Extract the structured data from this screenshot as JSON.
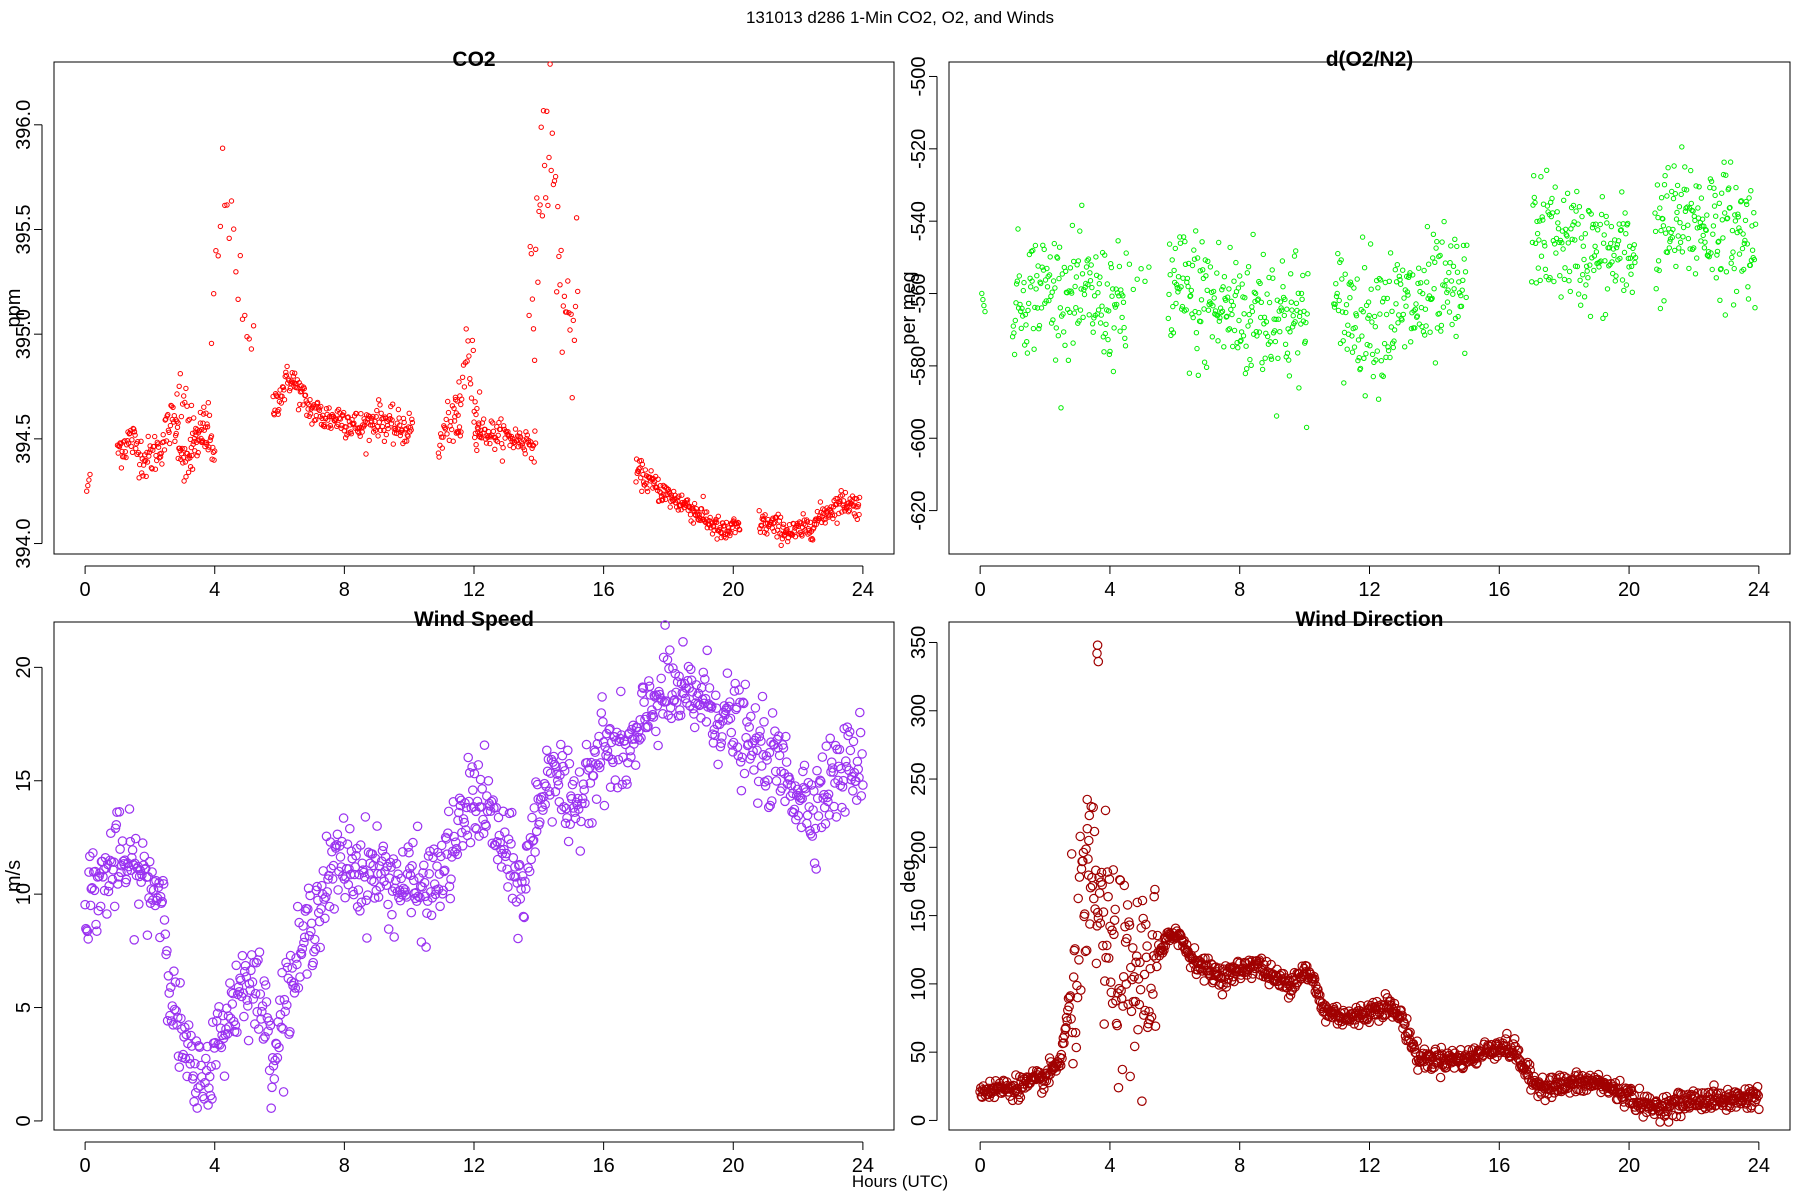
{
  "title": "131013   d286   1-Min CO2, O2, and Winds",
  "xlabel": "Hours (UTC)",
  "chart_data": [
    {
      "type": "scatter",
      "title": "CO2",
      "ylabel": "ppm",
      "color": "#ff0000",
      "xlim": [
        -0.96,
        24.96
      ],
      "ylim": [
        393.95,
        396.3
      ],
      "xticks": [
        "0",
        "4",
        "8",
        "12",
        "16",
        "20",
        "24"
      ],
      "yticks": [
        "394.0",
        "394.5",
        "395.0",
        "395.5",
        "396.0"
      ],
      "segments": [
        {
          "x0": 0.05,
          "x1": 0.15,
          "n": 4,
          "y": [
            394.25,
            394.33
          ]
        },
        {
          "x0": 1.0,
          "x1": 4.0,
          "n": 150,
          "y": [
            394.45,
            394.5,
            394.4,
            394.45,
            394.6,
            394.35,
            394.55,
            394.45
          ],
          "noise": 0.05
        },
        {
          "x0": 2.8,
          "x1": 3.8,
          "n": 30,
          "y": [
            394.6,
            394.7,
            394.4,
            394.6
          ],
          "noise": 0.08
        },
        {
          "x0": 3.9,
          "x1": 5.2,
          "n": 20,
          "y": [
            395.0,
            395.7,
            395.6,
            395.0,
            394.9
          ],
          "noise": 0.1
        },
        {
          "x0": 5.8,
          "x1": 10.1,
          "n": 220,
          "y": [
            394.65,
            394.8,
            394.65,
            394.6,
            394.6,
            394.55,
            394.6,
            394.55,
            394.55
          ],
          "noise": 0.04
        },
        {
          "x0": 10.9,
          "x1": 11.6,
          "n": 30,
          "y": [
            394.45,
            394.6,
            394.5
          ],
          "noise": 0.05
        },
        {
          "x0": 11.4,
          "x1": 12.2,
          "n": 30,
          "y": [
            394.6,
            394.9,
            394.6
          ],
          "noise": 0.09
        },
        {
          "x0": 12.0,
          "x1": 13.9,
          "n": 90,
          "y": [
            394.55,
            394.52,
            394.5,
            394.48
          ],
          "noise": 0.035
        },
        {
          "x0": 13.7,
          "x1": 15.2,
          "n": 45,
          "y": [
            394.9,
            395.6,
            396.0,
            395.4,
            395.0,
            395.1
          ],
          "noise": 0.2
        },
        {
          "x0": 17.0,
          "x1": 20.2,
          "n": 180,
          "y": [
            394.35,
            394.28,
            394.22,
            394.18,
            394.12,
            394.05,
            394.08
          ],
          "noise": 0.03
        },
        {
          "x0": 20.8,
          "x1": 23.9,
          "n": 170,
          "y": [
            394.1,
            394.08,
            394.05,
            394.08,
            394.15,
            394.2,
            394.18
          ],
          "noise": 0.03
        }
      ]
    },
    {
      "type": "scatter",
      "title": "d(O2/N2)",
      "ylabel": "per meg",
      "color": "#00ee00",
      "xlim": [
        -0.96,
        24.96
      ],
      "ylim": [
        -632,
        -496
      ],
      "xticks": [
        "0",
        "4",
        "8",
        "12",
        "16",
        "20",
        "24"
      ],
      "yticks": [
        "-620",
        "-600",
        "-580",
        "-560",
        "-540",
        "-520",
        "-500"
      ],
      "segments": [
        {
          "x0": 0.05,
          "x1": 0.15,
          "n": 4,
          "y": [
            -560,
            -565
          ]
        },
        {
          "x0": 1.0,
          "x1": 4.5,
          "n": 170,
          "y": [
            -562,
            -558,
            -560,
            -562,
            -565
          ],
          "noise": 8
        },
        {
          "x0": 4.6,
          "x1": 5.2,
          "n": 6,
          "y": [
            -560,
            -552
          ],
          "noise": 4
        },
        {
          "x0": 5.8,
          "x1": 10.1,
          "n": 220,
          "y": [
            -560,
            -562,
            -565,
            -565,
            -568
          ],
          "noise": 10
        },
        {
          "x0": 10.9,
          "x1": 15.0,
          "n": 200,
          "y": [
            -565,
            -566,
            -565,
            -562,
            -560
          ],
          "noise": 9
        },
        {
          "x0": 17.0,
          "x1": 20.2,
          "n": 160,
          "y": [
            -542,
            -545,
            -548,
            -550,
            -548
          ],
          "noise": 8
        },
        {
          "x0": 20.8,
          "x1": 23.9,
          "n": 170,
          "y": [
            -545,
            -540,
            -540,
            -543,
            -545
          ],
          "noise": 9
        }
      ]
    },
    {
      "type": "scatter",
      "title": "Wind Speed",
      "ylabel": "m/s",
      "color": "#9a32f0",
      "xlim": [
        -0.96,
        24.96
      ],
      "ylim": [
        -0.4,
        22.0
      ],
      "xticks": [
        "0",
        "4",
        "8",
        "12",
        "16",
        "20",
        "24"
      ],
      "yticks": [
        "0",
        "5",
        "10",
        "15",
        "20"
      ],
      "series": {
        "x": [
          0,
          0.5,
          1,
          1.5,
          2,
          2.4,
          2.7,
          3,
          3.3,
          3.6,
          4,
          4.5,
          5,
          5.5,
          5.8,
          6.2,
          6.6,
          7,
          7.5,
          8,
          8.5,
          9,
          9.5,
          10,
          10.5,
          11,
          11.5,
          12,
          12.5,
          13,
          13.5,
          14,
          14.5,
          15,
          15.5,
          16,
          16.5,
          17,
          17.5,
          18,
          18.5,
          19,
          19.5,
          20,
          20.5,
          21,
          21.5,
          22,
          22.5,
          23,
          23.5,
          24
        ],
        "y": [
          9.8,
          10.5,
          11.5,
          11.0,
          10.5,
          10.0,
          5.0,
          3.5,
          2.0,
          1.5,
          3.0,
          5.0,
          6.5,
          5.0,
          3.0,
          5.5,
          7.0,
          9.0,
          10.5,
          11.5,
          11.0,
          11.0,
          10.5,
          10.5,
          10.0,
          11.0,
          12.5,
          14.5,
          13.5,
          11.5,
          10.0,
          14.0,
          16.0,
          13.0,
          15.5,
          16.5,
          16.0,
          16.5,
          18.5,
          19.0,
          18.5,
          18.8,
          18.0,
          17.5,
          16.5,
          16.0,
          15.5,
          14.5,
          14.0,
          15.0,
          15.5,
          16.0
        ],
        "noise": 1.0,
        "n": 1000
      }
    },
    {
      "type": "scatter",
      "title": "Wind Direction",
      "ylabel": "deg",
      "color": "#a00000",
      "xlim": [
        -0.96,
        24.96
      ],
      "ylim": [
        -7,
        365
      ],
      "xticks": [
        "0",
        "4",
        "8",
        "12",
        "16",
        "20",
        "24"
      ],
      "yticks": [
        "0",
        "50",
        "100",
        "150",
        "200",
        "250",
        "300",
        "350"
      ],
      "series": {
        "x": [
          0,
          1,
          2,
          2.5,
          2.9,
          3.2,
          3.5,
          3.8,
          4.2,
          4.6,
          5.0,
          5.5,
          6.0,
          6.5,
          7.0,
          7.5,
          8.0,
          8.5,
          9.0,
          9.5,
          10.0,
          10.3,
          10.6,
          11.5,
          12.0,
          12.5,
          13.0,
          13.5,
          14.0,
          14.5,
          15.0,
          15.5,
          16.0,
          16.5,
          17.0,
          17.5,
          18.0,
          19.0,
          20.0,
          20.5,
          21.0,
          21.5,
          22.0,
          23.0,
          24.0
        ],
        "y": [
          22,
          24,
          30,
          45,
          110,
          150,
          170,
          140,
          110,
          95,
          105,
          120,
          140,
          120,
          110,
          105,
          110,
          115,
          105,
          100,
          110,
          100,
          80,
          75,
          80,
          85,
          75,
          45,
          45,
          45,
          45,
          50,
          55,
          50,
          28,
          25,
          26,
          28,
          18,
          10,
          10,
          12,
          15,
          15,
          18
        ],
        "noise": 4,
        "scatter_zone": [
          2.8,
          5.5
        ],
        "scatter_noise": 35,
        "n": 1200
      },
      "outliers": [
        {
          "x": 3.6,
          "y": 342
        },
        {
          "x": 3.62,
          "y": 348
        },
        {
          "x": 3.64,
          "y": 336
        },
        {
          "x": 3.3,
          "y": 235
        },
        {
          "x": 3.35,
          "y": 205
        }
      ]
    }
  ]
}
